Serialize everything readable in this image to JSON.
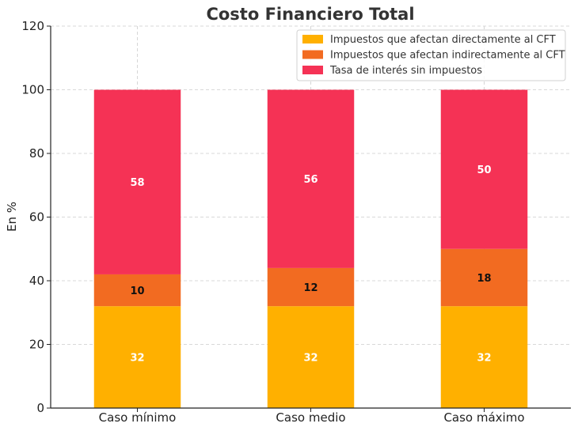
{
  "chart_data": {
    "type": "bar",
    "stacked": true,
    "title": "Costo Financiero Total",
    "xlabel": "",
    "ylabel": "En %",
    "ylim": [
      0,
      120
    ],
    "yticks": [
      0,
      20,
      40,
      60,
      80,
      100,
      120
    ],
    "grid": true,
    "legend_position": "top-right",
    "categories": [
      "Caso mínimo",
      "Caso medio",
      "Caso máximo"
    ],
    "series": [
      {
        "name": "Impuestos que afectan directamente al CFT",
        "color": "#FFB000",
        "label_color": "#ffffff",
        "values": [
          32,
          32,
          32
        ]
      },
      {
        "name": "Impuestos que afectan indirectamente al CFT",
        "color": "#F26B21",
        "label_color": "#111111",
        "values": [
          10,
          12,
          18
        ]
      },
      {
        "name": "Tasa de interés sin impuestos",
        "color": "#F53255",
        "label_color": "#ffffff",
        "values": [
          58,
          56,
          50
        ]
      }
    ]
  }
}
